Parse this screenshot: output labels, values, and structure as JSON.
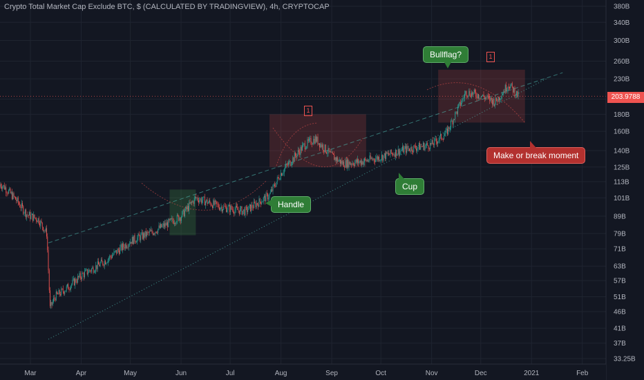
{
  "title": "Crypto Total Market Cap Exclude BTC, $ (CALCULATED BY TRADINGVIEW), 4h, CRYPTOCAP",
  "last_price": "203.9788",
  "colors": {
    "background": "#131722",
    "up": "#26a69a",
    "down": "#ef5350",
    "trend": "#4db6ac",
    "grid": "#1f2430",
    "axis_text": "#b2b5be"
  },
  "annotations": {
    "bullflag": "Bullflag?",
    "handle": "Handle",
    "cup": "Cup",
    "break": "Make or break moment",
    "box_mark_1": "1",
    "box_mark_2": "1"
  },
  "chart_data": {
    "type": "candlestick",
    "y_scale": "log",
    "y_tick_labels": [
      "380B",
      "340B",
      "300B",
      "260B",
      "230B",
      "200B",
      "180B",
      "160B",
      "140B",
      "125B",
      "113B",
      "101B",
      "89B",
      "79B",
      "71B",
      "63B",
      "57B",
      "51B",
      "46B",
      "41B",
      "37B",
      "33.25B"
    ],
    "y_tick_values": [
      380,
      340,
      300,
      260,
      230,
      200,
      180,
      160,
      140,
      125,
      113,
      101,
      89,
      79,
      71,
      63,
      57,
      51,
      46,
      41,
      37,
      33.25
    ],
    "x_tick_labels": [
      "Mar",
      "Apr",
      "May",
      "Jun",
      "Jul",
      "Aug",
      "Sep",
      "Oct",
      "Nov",
      "Dec",
      "2021",
      "Feb"
    ],
    "price_path": [
      [
        "2020-02-01",
        108
      ],
      [
        "2020-02-07",
        115
      ],
      [
        "2020-02-14",
        109
      ],
      [
        "2020-02-21",
        100
      ],
      [
        "2020-02-28",
        90
      ],
      [
        "2020-03-06",
        87
      ],
      [
        "2020-03-11",
        79
      ],
      [
        "2020-03-13",
        47
      ],
      [
        "2020-03-16",
        51
      ],
      [
        "2020-03-23",
        54
      ],
      [
        "2020-04-01",
        59
      ],
      [
        "2020-04-15",
        65
      ],
      [
        "2020-05-01",
        75
      ],
      [
        "2020-05-15",
        80
      ],
      [
        "2020-06-01",
        89
      ],
      [
        "2020-06-10",
        101
      ],
      [
        "2020-06-25",
        95
      ],
      [
        "2020-07-10",
        92
      ],
      [
        "2020-07-25",
        103
      ],
      [
        "2020-08-01",
        120
      ],
      [
        "2020-08-15",
        145
      ],
      [
        "2020-08-22",
        152
      ],
      [
        "2020-09-01",
        135
      ],
      [
        "2020-09-08",
        128
      ],
      [
        "2020-09-20",
        130
      ],
      [
        "2020-10-01",
        134
      ],
      [
        "2020-10-15",
        141
      ],
      [
        "2020-11-01",
        146
      ],
      [
        "2020-11-10",
        158
      ],
      [
        "2020-11-22",
        210
      ],
      [
        "2020-12-01",
        205
      ],
      [
        "2020-12-10",
        196
      ],
      [
        "2020-12-18",
        222
      ],
      [
        "2020-12-24",
        204
      ]
    ],
    "trend_lines": [
      {
        "style": "dashed",
        "from": [
          "2020-03-12",
          74
        ],
        "to": [
          "2021-01-20",
          240
        ]
      },
      {
        "style": "dotted",
        "from": [
          "2020-03-12",
          38
        ],
        "to": [
          "2021-01-10",
          230
        ]
      }
    ],
    "zones": [
      {
        "color": "green",
        "from": [
          "2020-05-25",
          78
        ],
        "to": [
          "2020-06-10",
          107
        ]
      },
      {
        "color": "red",
        "from": [
          "2020-07-25",
          125
        ],
        "to": [
          "2020-09-22",
          180
        ]
      },
      {
        "color": "red",
        "from": [
          "2020-11-05",
          170
        ],
        "to": [
          "2020-12-28",
          245
        ]
      }
    ]
  }
}
